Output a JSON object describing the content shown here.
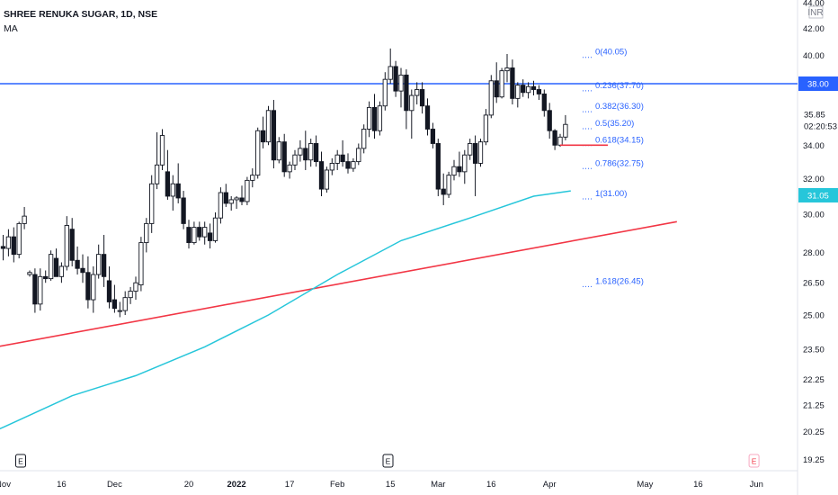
{
  "header": {
    "title": "SHREE RENUKA SUGAR, 1D, NSE",
    "indicator": "MA",
    "currency": "INR"
  },
  "colors": {
    "up": "#ffffff",
    "down": "#131722",
    "wick": "#131722",
    "ma": "#26c6da",
    "trend": "#f23645",
    "hline": "#2962ff",
    "fib": "#2962ff",
    "axis_text": "#131722"
  },
  "price_labels": {
    "hline": "38.00",
    "last": "35.85",
    "countdown": "02:20:53",
    "ma": "31.05"
  },
  "events_icon": "E",
  "chart_data": {
    "type": "candlestick",
    "title": "SHREE RENUKA SUGAR, 1D, NSE",
    "y_scale": "log",
    "ylim": [
      19.0,
      44.0
    ],
    "y_ticks": [
      "44.00",
      "42.00",
      "40.00",
      "38.00",
      "36.00",
      "34.00",
      "32.00",
      "30.00",
      "28.00",
      "26.50",
      "25.00",
      "23.50",
      "22.25",
      "21.25",
      "20.25",
      "19.25"
    ],
    "x_ticks": [
      {
        "label": "Nov",
        "bar": 0
      },
      {
        "label": "16",
        "bar": 11
      },
      {
        "label": "Dec",
        "bar": 21
      },
      {
        "label": "20",
        "bar": 35
      },
      {
        "label": "2022",
        "bar": 44
      },
      {
        "label": "17",
        "bar": 54
      },
      {
        "label": "Feb",
        "bar": 63
      },
      {
        "label": "15",
        "bar": 73
      },
      {
        "label": "Mar",
        "bar": 82
      },
      {
        "label": "16",
        "bar": 92
      },
      {
        "label": "Apr",
        "bar": 103
      },
      {
        "label": "May",
        "bar": 121
      },
      {
        "label": "16",
        "bar": 131
      },
      {
        "label": "Jun",
        "bar": 142
      }
    ],
    "events": [
      {
        "label": "E",
        "bar": 0,
        "upcoming": false
      },
      {
        "label": "E",
        "bar": 70,
        "upcoming": false
      },
      {
        "label": "E",
        "bar": 139,
        "upcoming": true
      }
    ],
    "candles": [
      [
        28.3,
        28.9,
        27.6,
        28.2
      ],
      [
        28.2,
        29.2,
        27.8,
        28.8
      ],
      [
        28.8,
        29.3,
        27.5,
        27.9
      ],
      [
        27.9,
        29.6,
        27.7,
        29.5
      ],
      [
        29.5,
        30.4,
        29.2,
        29.9
      ],
      [
        26.9,
        27.1,
        26.8,
        27.0
      ],
      [
        26.9,
        27.2,
        25.1,
        25.5
      ],
      [
        25.5,
        27.2,
        25.2,
        26.8
      ],
      [
        26.8,
        27.1,
        26.5,
        26.7
      ],
      [
        26.7,
        28.1,
        26.6,
        27.9
      ],
      [
        27.7,
        28.2,
        26.8,
        26.8
      ],
      [
        26.8,
        27.5,
        26.5,
        27.3
      ],
      [
        27.3,
        29.9,
        27.1,
        29.4
      ],
      [
        29.2,
        29.8,
        27.3,
        27.6
      ],
      [
        27.6,
        28.3,
        26.9,
        27.2
      ],
      [
        27.2,
        27.9,
        26.5,
        27.0
      ],
      [
        27.0,
        27.8,
        25.3,
        25.7
      ],
      [
        25.7,
        27.3,
        25.1,
        26.9
      ],
      [
        26.9,
        28.4,
        26.7,
        27.9
      ],
      [
        27.9,
        28.9,
        26.3,
        26.8
      ],
      [
        26.6,
        27.3,
        25.3,
        25.6
      ],
      [
        25.7,
        26.4,
        25.1,
        25.3
      ],
      [
        25.2,
        25.6,
        24.9,
        25.2
      ],
      [
        25.2,
        26.1,
        25.0,
        25.8
      ],
      [
        25.8,
        26.3,
        25.5,
        26.1
      ],
      [
        26.1,
        26.8,
        25.7,
        26.5
      ],
      [
        26.4,
        28.8,
        26.1,
        28.5
      ],
      [
        28.5,
        29.8,
        28.0,
        29.5
      ],
      [
        29.5,
        32.2,
        29.0,
        31.7
      ],
      [
        31.7,
        34.8,
        31.4,
        32.8
      ],
      [
        32.8,
        35.0,
        32.5,
        34.6
      ],
      [
        32.4,
        33.7,
        30.8,
        31.0
      ],
      [
        31.0,
        32.2,
        30.2,
        31.7
      ],
      [
        31.7,
        32.9,
        30.6,
        30.9
      ],
      [
        30.9,
        31.3,
        29.2,
        29.5
      ],
      [
        29.3,
        29.7,
        28.2,
        28.5
      ],
      [
        28.5,
        29.6,
        28.4,
        29.3
      ],
      [
        29.3,
        29.6,
        28.6,
        28.8
      ],
      [
        28.8,
        29.6,
        28.4,
        29.3
      ],
      [
        29.0,
        29.5,
        28.2,
        28.6
      ],
      [
        28.6,
        30.1,
        28.5,
        29.8
      ],
      [
        29.8,
        31.5,
        29.5,
        31.2
      ],
      [
        31.2,
        31.7,
        30.4,
        30.6
      ],
      [
        30.6,
        31.0,
        30.2,
        30.8
      ],
      [
        30.8,
        31.0,
        30.3,
        30.9
      ],
      [
        30.9,
        31.6,
        30.5,
        30.7
      ],
      [
        30.7,
        32.1,
        30.5,
        31.9
      ],
      [
        31.9,
        32.6,
        31.5,
        32.2
      ],
      [
        32.2,
        35.1,
        32.0,
        34.9
      ],
      [
        34.9,
        35.8,
        33.8,
        34.2
      ],
      [
        34.2,
        36.5,
        34.0,
        36.2
      ],
      [
        36.2,
        36.9,
        32.6,
        33.1
      ],
      [
        33.1,
        34.5,
        32.9,
        34.2
      ],
      [
        34.2,
        34.7,
        32.1,
        32.4
      ],
      [
        32.4,
        33.0,
        32.0,
        32.8
      ],
      [
        32.8,
        33.7,
        32.5,
        33.4
      ],
      [
        33.4,
        34.3,
        33.0,
        33.8
      ],
      [
        33.8,
        34.9,
        32.5,
        33.1
      ],
      [
        33.1,
        34.4,
        32.7,
        34.1
      ],
      [
        34.1,
        34.6,
        32.7,
        33.0
      ],
      [
        33.0,
        33.6,
        31.0,
        31.4
      ],
      [
        31.4,
        32.7,
        31.2,
        32.5
      ],
      [
        32.5,
        33.2,
        32.2,
        32.9
      ],
      [
        32.9,
        33.7,
        32.5,
        33.4
      ],
      [
        33.4,
        34.3,
        32.7,
        33.0
      ],
      [
        33.0,
        33.5,
        32.3,
        32.6
      ],
      [
        32.6,
        33.2,
        32.4,
        33.0
      ],
      [
        33.0,
        34.1,
        32.8,
        33.8
      ],
      [
        33.8,
        35.3,
        33.5,
        35.0
      ],
      [
        35.0,
        36.8,
        34.5,
        36.4
      ],
      [
        36.4,
        37.3,
        34.4,
        34.9
      ],
      [
        34.9,
        36.8,
        34.6,
        36.5
      ],
      [
        36.5,
        38.8,
        36.2,
        38.3
      ],
      [
        38.3,
        40.5,
        38.0,
        39.2
      ],
      [
        39.2,
        39.6,
        37.1,
        37.5
      ],
      [
        37.5,
        39.1,
        36.4,
        38.6
      ],
      [
        38.6,
        39.0,
        35.0,
        36.2
      ],
      [
        36.2,
        37.6,
        34.4,
        37.2
      ],
      [
        37.2,
        38.1,
        36.6,
        37.6
      ],
      [
        37.6,
        38.1,
        36.0,
        36.5
      ],
      [
        36.5,
        37.0,
        34.6,
        35.0
      ],
      [
        35.0,
        35.4,
        33.8,
        34.1
      ],
      [
        34.1,
        34.4,
        31.0,
        31.4
      ],
      [
        31.4,
        32.3,
        30.5,
        31.1
      ],
      [
        31.1,
        32.4,
        30.9,
        32.2
      ],
      [
        32.2,
        33.1,
        31.9,
        32.7
      ],
      [
        32.7,
        33.6,
        32.1,
        32.4
      ],
      [
        32.4,
        33.7,
        31.7,
        33.4
      ],
      [
        33.4,
        34.4,
        33.1,
        34.1
      ],
      [
        34.1,
        34.6,
        31.0,
        32.9
      ],
      [
        32.9,
        34.4,
        32.7,
        34.2
      ],
      [
        34.2,
        36.3,
        34.0,
        35.9
      ],
      [
        35.9,
        38.6,
        35.7,
        38.2
      ],
      [
        38.2,
        39.5,
        36.7,
        37.1
      ],
      [
        37.1,
        39.1,
        37.0,
        38.9
      ],
      [
        38.9,
        40.1,
        38.1,
        39.1
      ],
      [
        39.1,
        39.7,
        36.6,
        37.0
      ],
      [
        37.0,
        38.1,
        36.4,
        37.9
      ],
      [
        37.9,
        38.3,
        37.1,
        37.4
      ],
      [
        37.4,
        38.1,
        37.0,
        37.8
      ],
      [
        37.8,
        38.2,
        37.2,
        37.6
      ],
      [
        37.6,
        37.9,
        36.9,
        37.3
      ],
      [
        37.3,
        37.6,
        35.8,
        36.2
      ],
      [
        36.2,
        36.7,
        34.4,
        34.9
      ],
      [
        34.9,
        35.0,
        33.7,
        34.0
      ],
      [
        34.0,
        34.7,
        33.9,
        34.5
      ],
      [
        34.5,
        35.9,
        34.3,
        35.3
      ]
    ],
    "ma": [
      {
        "bar": -6,
        "value": 19.9
      },
      {
        "bar": 0,
        "value": 20.4
      },
      {
        "bar": 13,
        "value": 21.6
      },
      {
        "bar": 25,
        "value": 22.4
      },
      {
        "bar": 38,
        "value": 23.6
      },
      {
        "bar": 50,
        "value": 25.0
      },
      {
        "bar": 63,
        "value": 26.9
      },
      {
        "bar": 75,
        "value": 28.6
      },
      {
        "bar": 88,
        "value": 29.8
      },
      {
        "bar": 100,
        "value": 31.0
      },
      {
        "bar": 107,
        "value": 31.3
      }
    ],
    "trendline": {
      "from": {
        "bar": -6,
        "value": 23.4
      },
      "to": {
        "bar": 127,
        "value": 29.6
      }
    },
    "support_segment": {
      "from_bar": 105,
      "to_bar": 114,
      "value": 34.0
    },
    "horizontal_line": 38.0,
    "fibonacci": [
      {
        "label": "0(40.05)",
        "value": 40.05
      },
      {
        "label": "0.236(37.70)",
        "value": 37.7
      },
      {
        "label": "0.382(36.30)",
        "value": 36.3
      },
      {
        "label": "0.5(35.20)",
        "value": 35.2
      },
      {
        "label": "0.618(34.15)",
        "value": 34.15
      },
      {
        "label": "0.786(32.75)",
        "value": 32.75
      },
      {
        "label": "1(31.00)",
        "value": 31.0
      },
      {
        "label": "1.618(26.45)",
        "value": 26.45
      }
    ]
  }
}
